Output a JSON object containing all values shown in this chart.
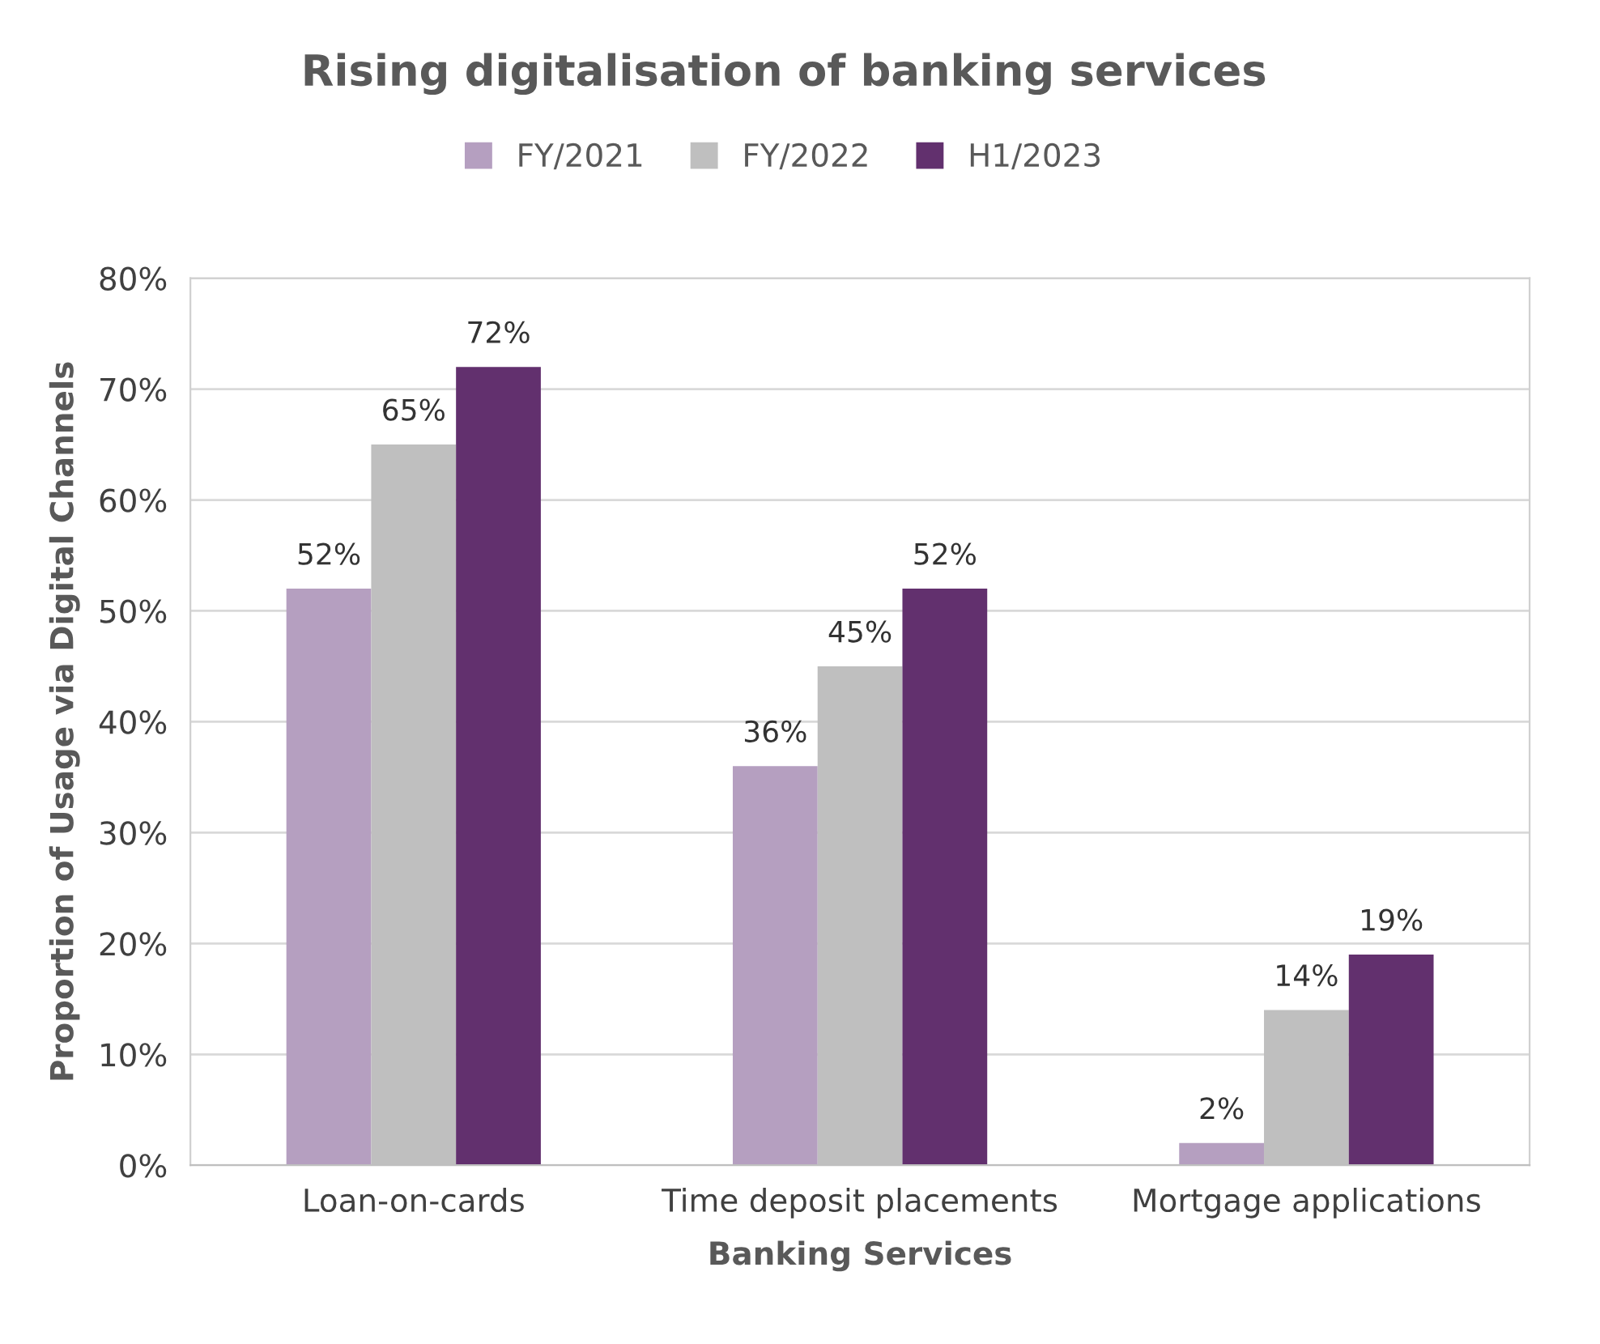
{
  "chart_data": {
    "type": "bar",
    "title": "Rising digitalisation of banking services",
    "xlabel": "Banking Services",
    "ylabel": "Proportion of Usage via Digital Channels",
    "categories": [
      "Loan-on-cards",
      "Time deposit placements",
      "Mortgage applications"
    ],
    "series": [
      {
        "name": "FY/2021",
        "color": "#b59fc0",
        "values": [
          52,
          36,
          2
        ],
        "value_labels": [
          "52%",
          "36%",
          "2%"
        ]
      },
      {
        "name": "FY/2022",
        "color": "#bfbfbf",
        "values": [
          65,
          45,
          14
        ],
        "value_labels": [
          "65%",
          "45%",
          "14%"
        ]
      },
      {
        "name": "H1/2023",
        "color": "#62306e",
        "values": [
          72,
          52,
          19
        ],
        "value_labels": [
          "72%",
          "52%",
          "19%"
        ]
      }
    ],
    "ylim": [
      0,
      80
    ],
    "yticks": [
      {
        "value": 0,
        "label": "0%"
      },
      {
        "value": 10,
        "label": "10%"
      },
      {
        "value": 20,
        "label": "20%"
      },
      {
        "value": 30,
        "label": "30%"
      },
      {
        "value": 40,
        "label": "40%"
      },
      {
        "value": 50,
        "label": "50%"
      },
      {
        "value": 60,
        "label": "60%"
      },
      {
        "value": 70,
        "label": "70%"
      },
      {
        "value": 80,
        "label": "80%"
      }
    ],
    "grid": "y",
    "legend": "top"
  }
}
